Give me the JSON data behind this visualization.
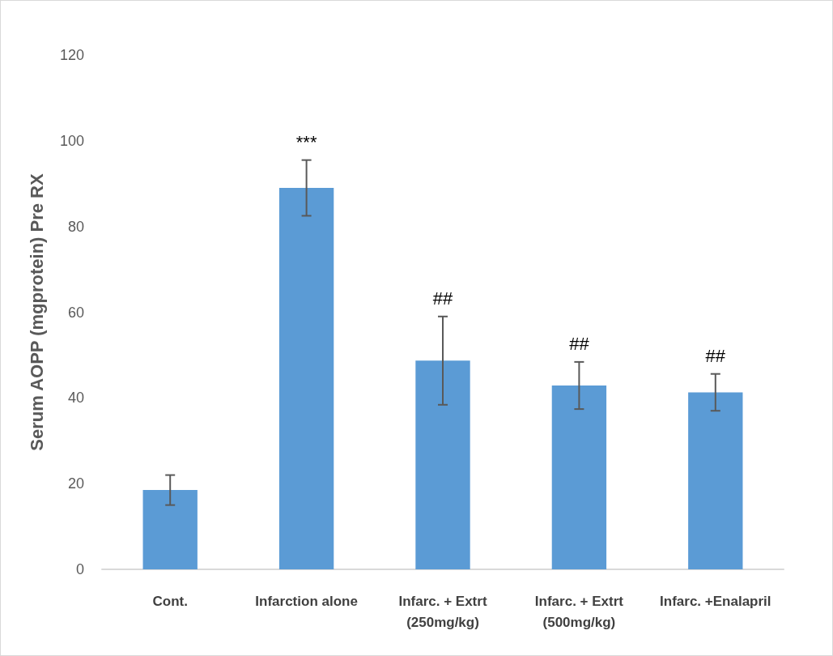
{
  "chart_data": {
    "type": "bar",
    "ylabel": "Serum AOPP (mgprotein) Pre RX",
    "categories": [
      "Cont.",
      "Infarction alone",
      "Infarc. + Extrt\n(250mg/kg)",
      "Infarc. + Extrt\n(500mg/kg)",
      "Infarc. +Enalapril"
    ],
    "values": [
      18.5,
      89.0,
      48.7,
      42.9,
      41.3
    ],
    "errors": [
      3.5,
      6.5,
      10.3,
      5.5,
      4.3
    ],
    "color": "#5b9bd5",
    "ylim": [
      0,
      120
    ],
    "yticks": [
      0,
      20,
      40,
      60,
      80,
      100,
      120
    ],
    "grid": false,
    "annotations": [
      "***",
      "##",
      "##",
      "##"
    ]
  }
}
